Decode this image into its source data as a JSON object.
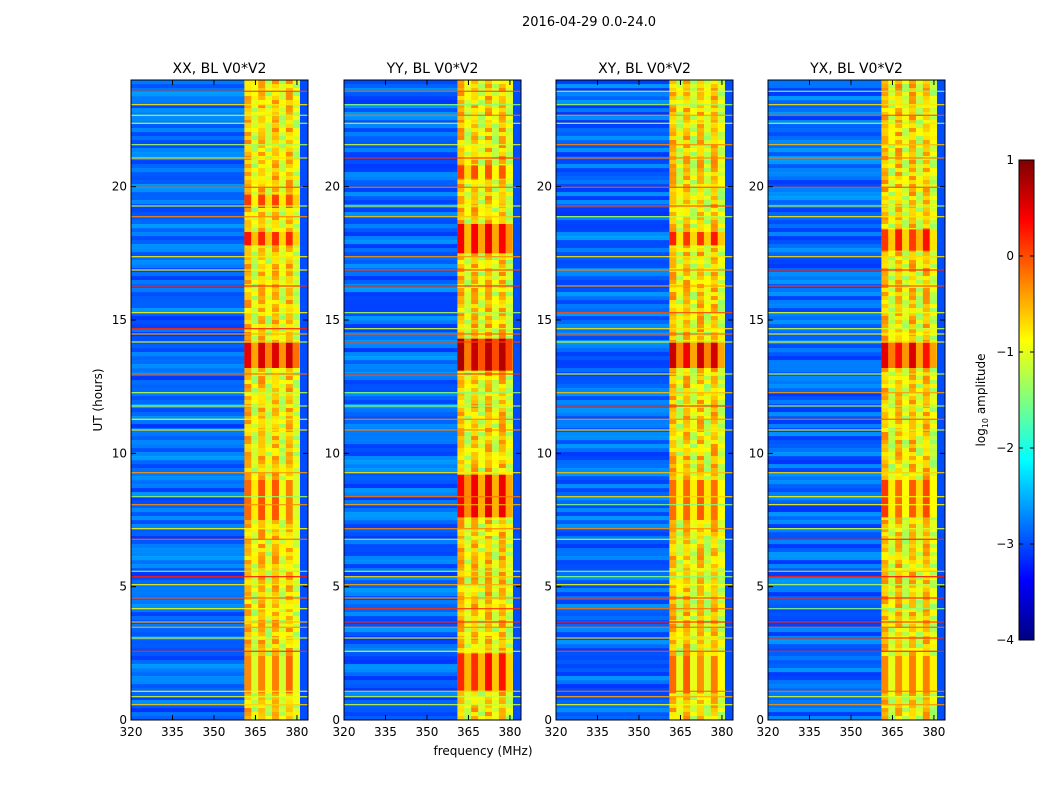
{
  "chart_data": {
    "type": "heatmap",
    "suptitle": "2016-04-29 0.0-24.0",
    "xlabel": "frequency (MHz)",
    "ylabel": "UT (hours)",
    "xlim": [
      320,
      384
    ],
    "ylim": [
      0,
      24
    ],
    "xticks": [
      320,
      335,
      350,
      365,
      380
    ],
    "yticks": [
      0,
      5,
      10,
      15,
      20
    ],
    "panels": [
      {
        "title": "XX, BL V0*V2",
        "ylabel_shown": true,
        "xlabel_shown": false,
        "intensity": [
          {
            "t0": 13.2,
            "t1": 14.2,
            "level": 0.5
          },
          {
            "t0": 17.8,
            "t1": 18.3,
            "level": 0.15
          },
          {
            "t0": 19.2,
            "t1": 19.7,
            "level": 0.05
          },
          {
            "t0": 7.5,
            "t1": 9.0,
            "level": -0.1
          },
          {
            "t0": 1.0,
            "t1": 2.4,
            "level": -0.2
          }
        ]
      },
      {
        "title": "YY, BL V0*V2",
        "ylabel_shown": false,
        "xlabel_shown": true,
        "intensity": [
          {
            "t0": 13.1,
            "t1": 14.3,
            "level": 0.7
          },
          {
            "t0": 17.5,
            "t1": 18.6,
            "level": 0.4
          },
          {
            "t0": 7.6,
            "t1": 9.2,
            "level": 0.35
          },
          {
            "t0": 1.1,
            "t1": 2.5,
            "level": 0.2
          },
          {
            "t0": 20.3,
            "t1": 20.8,
            "level": 0.0
          }
        ]
      },
      {
        "title": "XY, BL V0*V2",
        "ylabel_shown": false,
        "xlabel_shown": false,
        "intensity": [
          {
            "t0": 13.2,
            "t1": 14.2,
            "level": 0.5
          },
          {
            "t0": 17.8,
            "t1": 18.3,
            "level": 0.15
          },
          {
            "t0": 7.5,
            "t1": 9.0,
            "level": -0.1
          },
          {
            "t0": 1.0,
            "t1": 2.4,
            "level": -0.2
          }
        ]
      },
      {
        "title": "YX, BL V0*V2",
        "ylabel_shown": false,
        "xlabel_shown": false,
        "intensity": [
          {
            "t0": 13.2,
            "t1": 14.2,
            "level": 0.45
          },
          {
            "t0": 17.6,
            "t1": 18.4,
            "level": 0.2
          },
          {
            "t0": 7.6,
            "t1": 9.0,
            "level": 0.0
          },
          {
            "t0": 1.0,
            "t1": 2.4,
            "level": -0.15
          }
        ]
      }
    ],
    "active_band_mhz": [
      361,
      381
    ],
    "horizontal_rfi_lines_ut": [
      0.6,
      0.9,
      1.1,
      2.6,
      3.1,
      3.5,
      3.7,
      4.2,
      4.6,
      5.1,
      5.4,
      5.6,
      6.8,
      7.2,
      8.1,
      8.4,
      9.3,
      10.9,
      11.3,
      11.8,
      12.3,
      13.0,
      14.2,
      14.5,
      14.7,
      15.3,
      16.3,
      16.9,
      17.4,
      18.9,
      19.3,
      20.0,
      21.1,
      21.6,
      22.4,
      22.7,
      23.1,
      23.6
    ],
    "colorbar": {
      "label": "log",
      "label_sub": "10",
      "label_rest": " amplitude",
      "range": [
        -4,
        1
      ],
      "ticks": [
        "1",
        "0",
        "−1",
        "−2",
        "−3",
        "−4"
      ],
      "tick_values": [
        1,
        0,
        -1,
        -2,
        -3,
        -4
      ],
      "colormap": "jet",
      "colors": [
        "#00007f",
        "#0000ff",
        "#007fff",
        "#00ffff",
        "#7fff7f",
        "#ffff00",
        "#ff7f00",
        "#ff0000",
        "#7f0000"
      ]
    }
  }
}
